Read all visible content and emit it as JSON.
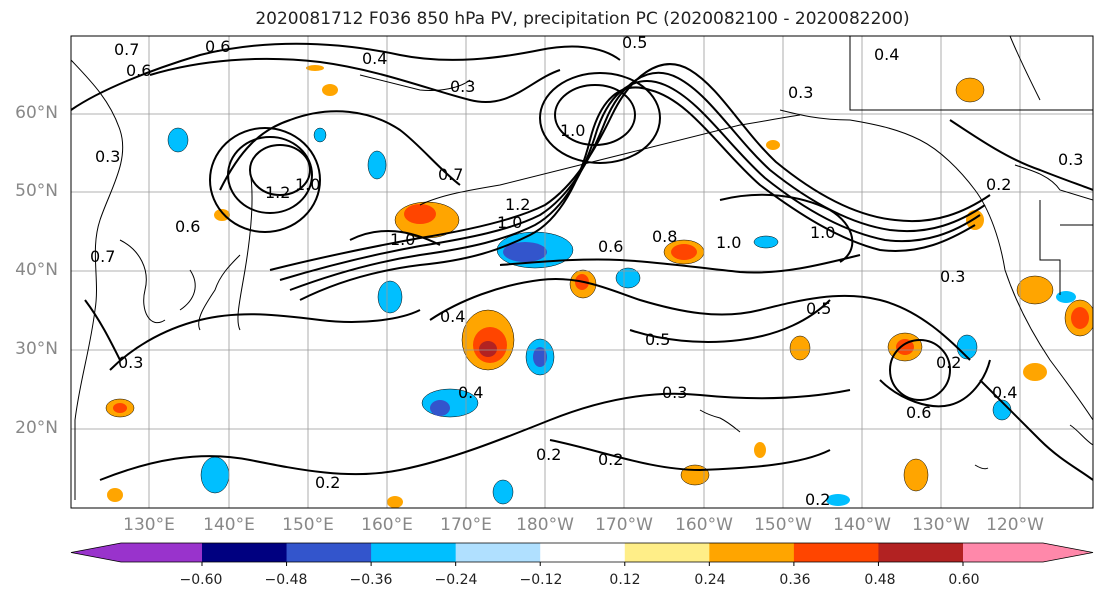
{
  "title": "2020081712 F036 850 hPa PV, precipitation PC (2020082100 - 2020082200)",
  "lat_labels": [
    "60°N",
    "50°N",
    "40°N",
    "30°N",
    "20°N"
  ],
  "lon_labels": [
    "130°E",
    "140°E",
    "150°E",
    "160°E",
    "170°E",
    "180°W",
    "170°W",
    "160°W",
    "150°W",
    "140°W",
    "130°W",
    "120°W"
  ],
  "contour_labels": [
    "0.7",
    "0.6",
    "0.6",
    "0.4",
    "0.5",
    "0.4",
    "0.3",
    "0.3",
    "0.3",
    "1.0",
    "0.3",
    "0.2",
    "1.2",
    "1.0",
    "0.7",
    "0.6",
    "1.0",
    "1.2",
    "1.0",
    "0.6",
    "0.8",
    "1.0",
    "1.0",
    "0.7",
    "0.4",
    "0.5",
    "0.5",
    "0.3",
    "0.3",
    "0.4",
    "0.2",
    "0.2",
    "0.2",
    "0.2",
    "0.6",
    "0.4",
    "0.2",
    "0.3"
  ],
  "colorbar": {
    "tick_labels": [
      "−0.60",
      "−0.48",
      "−0.36",
      "−0.24",
      "−0.12",
      "0.12",
      "0.24",
      "0.36",
      "0.48",
      "0.60"
    ],
    "colors": [
      "#9933cc",
      "#000080",
      "#3355cc",
      "#00bfff",
      "#b0e0ff",
      "#ffffff",
      "#ffee88",
      "#ffa500",
      "#ff4500",
      "#b22222",
      "#ff88aa"
    ]
  },
  "map_colors": {
    "contour": "#000000",
    "grid": "#999999",
    "neg_light": "#00bfff",
    "neg_mid": "#3355cc",
    "pos_light": "#ffa500",
    "pos_mid": "#ff4500",
    "pos_dark": "#b22222"
  }
}
